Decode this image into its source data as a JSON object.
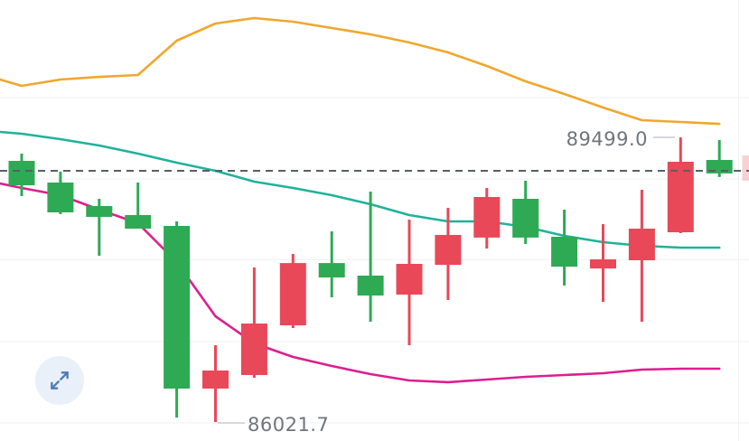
{
  "chart_data": {
    "type": "candlestick",
    "title": "",
    "legend": [],
    "axes": {
      "x_ticks": [],
      "y_ticks": [],
      "grid": "horizontal-faint"
    },
    "visible_range": {
      "high": 89499.0,
      "low": 86021.7
    },
    "annotations": {
      "high_label": "89499.0",
      "low_label": "86021.7",
      "high_price": 89499.0,
      "low_price": 86021.7,
      "price_line": 89091
    },
    "colors": {
      "up": "#2eaa54",
      "down": "#e94859",
      "upper_band": "#f0a72d",
      "middle_band": "#20b29b",
      "lower_band": "#dd1e8f",
      "dashed_line": "#585f66",
      "grid": "#eff1f4",
      "label_text": "#6f757c",
      "pointer": "#c8cbd0",
      "button_bg": "#e9f0fa",
      "button_icon": "#4f7cb7"
    },
    "candles": [
      {
        "open": 88914,
        "high": 89300,
        "low": 88781,
        "close": 89212
      },
      {
        "open": 88583,
        "high": 89080,
        "low": 88561,
        "close": 88947
      },
      {
        "open": 88528,
        "high": 88748,
        "low": 88053,
        "close": 88660
      },
      {
        "open": 88384,
        "high": 88947,
        "low": 88384,
        "close": 88550
      },
      {
        "open": 86430,
        "high": 88472,
        "low": 86077,
        "close": 88417
      },
      {
        "open": 86651,
        "high": 86960,
        "low": 86021.7,
        "close": 86430
      },
      {
        "open": 87225,
        "high": 87909,
        "low": 86563,
        "close": 86596
      },
      {
        "open": 87964,
        "high": 88075,
        "low": 87170,
        "close": 87203
      },
      {
        "open": 87788,
        "high": 88351,
        "low": 87545,
        "close": 87964
      },
      {
        "open": 87567,
        "high": 88837,
        "low": 87247,
        "close": 87810
      },
      {
        "open": 87953,
        "high": 88494,
        "low": 86960,
        "close": 87578
      },
      {
        "open": 88307,
        "high": 88638,
        "low": 87512,
        "close": 87942
      },
      {
        "open": 88770,
        "high": 88881,
        "low": 88141,
        "close": 88274
      },
      {
        "open": 88274,
        "high": 88969,
        "low": 88196,
        "close": 88748
      },
      {
        "open": 87920,
        "high": 88616,
        "low": 87689,
        "close": 88285
      },
      {
        "open": 88009,
        "high": 88439,
        "low": 87490,
        "close": 87898
      },
      {
        "open": 88384,
        "high": 88859,
        "low": 87247,
        "close": 87998
      },
      {
        "open": 89201,
        "high": 89499,
        "low": 88329,
        "close": 88340
      },
      {
        "open": 89058,
        "high": 89466,
        "low": 89014,
        "close": 89223
      }
    ],
    "overlays": [
      {
        "name": "upper-band",
        "color": "#f0a72d",
        "values": [
          90205,
          90128,
          90205,
          90238,
          90261,
          90680,
          90890,
          90956,
          90912,
          90835,
          90757,
          90658,
          90537,
          90371,
          90183,
          90029,
          89863,
          89709,
          89687,
          89664
        ]
      },
      {
        "name": "middle-band",
        "color": "#20b29b",
        "values": [
          89565,
          89543,
          89477,
          89400,
          89300,
          89190,
          89091,
          88958,
          88881,
          88793,
          88682,
          88550,
          88472,
          88472,
          88406,
          88296,
          88218,
          88174,
          88152,
          88152
        ]
      },
      {
        "name": "lower-band",
        "color": "#dd1e8f",
        "values": [
          88936,
          88881,
          88793,
          88616,
          88450,
          87976,
          87313,
          86982,
          86817,
          86706,
          86607,
          86530,
          86508,
          86541,
          86574,
          86596,
          86618,
          86662,
          86673,
          86673
        ]
      }
    ]
  },
  "ui": {
    "expand_button": {
      "icon": "expand-arrows"
    }
  }
}
